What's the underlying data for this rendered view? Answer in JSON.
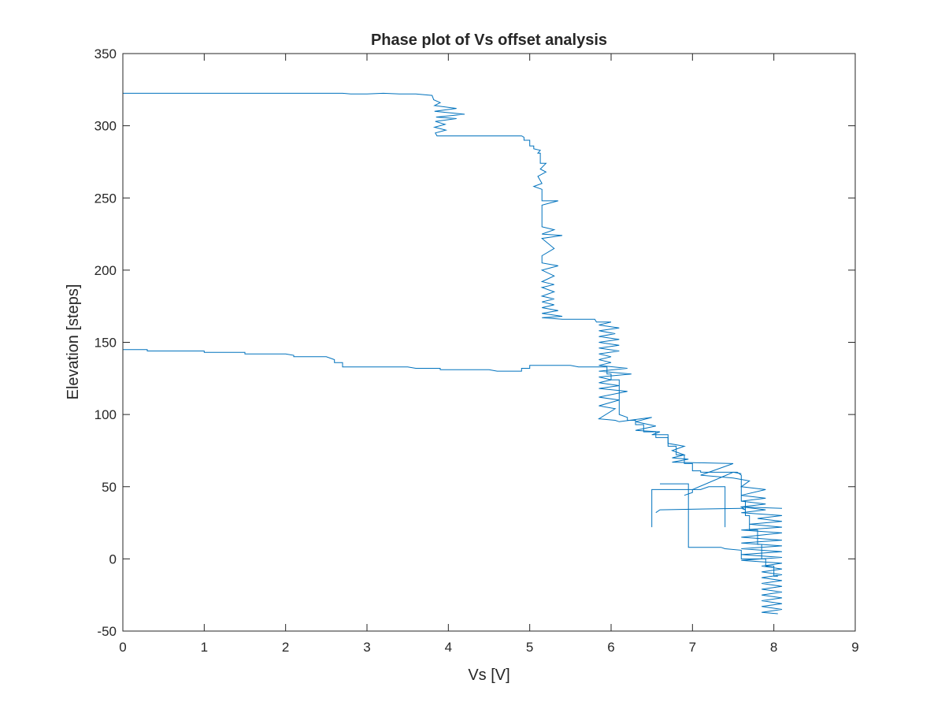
{
  "chart_data": {
    "type": "line",
    "title": "Phase plot of Vs offset analysis",
    "xlabel": "Vs [V]",
    "ylabel": "Elevation [steps]",
    "xlim": [
      0,
      9
    ],
    "ylim": [
      -50,
      350
    ],
    "xticks": [
      0,
      1,
      2,
      3,
      4,
      5,
      6,
      7,
      8,
      9
    ],
    "yticks": [
      -50,
      0,
      50,
      100,
      150,
      200,
      250,
      300,
      350
    ],
    "grid": false,
    "box": true,
    "series": [
      {
        "color": "#0072BD",
        "points": [
          [
            0.0,
            145
          ],
          [
            0.3,
            145
          ],
          [
            0.3,
            144
          ],
          [
            1.0,
            144
          ],
          [
            1.0,
            143
          ],
          [
            1.5,
            143
          ],
          [
            1.5,
            142
          ],
          [
            2.0,
            142
          ],
          [
            2.1,
            141
          ],
          [
            2.1,
            140
          ],
          [
            2.5,
            140
          ],
          [
            2.6,
            138
          ],
          [
            2.6,
            136
          ],
          [
            2.7,
            136
          ],
          [
            2.7,
            133
          ],
          [
            3.5,
            133
          ],
          [
            3.6,
            132
          ],
          [
            3.9,
            132
          ],
          [
            3.9,
            131
          ],
          [
            4.5,
            131
          ],
          [
            4.6,
            130
          ],
          [
            4.9,
            130
          ],
          [
            4.9,
            132
          ],
          [
            5.0,
            132
          ],
          [
            5.0,
            134
          ],
          [
            5.5,
            134
          ],
          [
            5.6,
            133
          ],
          [
            5.95,
            133
          ],
          [
            5.95,
            128
          ],
          [
            6.0,
            128
          ],
          [
            6.0,
            124
          ],
          [
            6.1,
            124
          ],
          [
            6.1,
            100
          ],
          [
            6.2,
            98
          ],
          [
            6.2,
            96
          ],
          [
            6.3,
            96
          ],
          [
            6.3,
            93
          ],
          [
            6.4,
            93
          ],
          [
            6.4,
            88
          ],
          [
            6.55,
            88
          ],
          [
            6.55,
            84
          ],
          [
            6.7,
            84
          ],
          [
            6.7,
            78
          ],
          [
            6.8,
            78
          ],
          [
            6.8,
            72
          ],
          [
            6.9,
            72
          ],
          [
            6.9,
            66
          ],
          [
            7.0,
            66
          ],
          [
            7.0,
            61
          ],
          [
            7.1,
            61
          ],
          [
            7.1,
            60
          ],
          [
            7.55,
            60
          ],
          [
            7.6,
            58
          ],
          [
            7.6,
            40
          ],
          [
            7.65,
            40
          ],
          [
            7.65,
            30
          ],
          [
            7.7,
            30
          ],
          [
            7.7,
            20
          ],
          [
            7.8,
            20
          ],
          [
            7.8,
            10
          ],
          [
            7.85,
            10
          ],
          [
            7.85,
            0
          ],
          [
            7.9,
            0
          ],
          [
            7.9,
            -5
          ],
          [
            8.0,
            -5
          ],
          [
            8.0,
            -12
          ],
          [
            8.05,
            -12
          ]
        ]
      },
      {
        "color": "#0072BD",
        "points": [
          [
            0.0,
            200
          ],
          [
            0.0,
            322.5
          ],
          [
            1.0,
            322.5
          ],
          [
            2.0,
            322.5
          ],
          [
            2.7,
            322.5
          ],
          [
            2.8,
            322
          ],
          [
            3.0,
            322
          ],
          [
            3.2,
            322.5
          ],
          [
            3.4,
            322
          ],
          [
            3.6,
            322
          ],
          [
            3.8,
            321
          ],
          [
            3.82,
            318
          ],
          [
            3.9,
            316
          ],
          [
            3.83,
            314
          ],
          [
            4.1,
            312
          ],
          [
            3.83,
            310
          ],
          [
            4.2,
            308
          ],
          [
            3.85,
            306
          ],
          [
            4.1,
            305
          ],
          [
            3.84,
            303
          ],
          [
            3.96,
            301
          ],
          [
            3.83,
            299
          ],
          [
            3.97,
            297
          ],
          [
            3.84,
            295
          ],
          [
            3.86,
            293
          ],
          [
            4.5,
            293
          ],
          [
            4.9,
            293
          ],
          [
            4.93,
            292
          ],
          [
            4.93,
            290
          ],
          [
            5.0,
            290
          ],
          [
            5.0,
            286
          ],
          [
            5.05,
            286
          ],
          [
            5.05,
            284
          ],
          [
            5.13,
            283
          ],
          [
            5.1,
            281
          ],
          [
            5.13,
            281
          ],
          [
            5.13,
            274
          ],
          [
            5.2,
            274
          ],
          [
            5.13,
            270
          ],
          [
            5.2,
            268
          ],
          [
            5.1,
            265
          ],
          [
            5.15,
            260
          ],
          [
            5.05,
            258
          ],
          [
            5.15,
            256
          ],
          [
            5.15,
            248
          ],
          [
            5.35,
            248
          ],
          [
            5.15,
            245
          ],
          [
            5.15,
            230
          ],
          [
            5.3,
            228
          ],
          [
            5.15,
            225
          ],
          [
            5.4,
            224
          ],
          [
            5.15,
            222
          ],
          [
            5.3,
            215
          ],
          [
            5.15,
            210
          ],
          [
            5.15,
            205
          ],
          [
            5.35,
            203
          ],
          [
            5.15,
            200
          ],
          [
            5.3,
            196
          ],
          [
            5.15,
            192
          ],
          [
            5.3,
            190
          ],
          [
            5.15,
            188
          ],
          [
            5.3,
            185
          ],
          [
            5.15,
            182
          ],
          [
            5.3,
            180
          ],
          [
            5.15,
            178
          ],
          [
            5.3,
            176
          ],
          [
            5.15,
            174
          ],
          [
            5.35,
            172
          ],
          [
            5.15,
            170
          ],
          [
            5.4,
            168
          ],
          [
            5.15,
            167
          ],
          [
            5.4,
            166
          ],
          [
            5.8,
            166
          ],
          [
            5.82,
            164
          ],
          [
            6.0,
            164
          ],
          [
            5.85,
            162
          ],
          [
            6.1,
            160
          ],
          [
            5.85,
            158
          ],
          [
            6.05,
            156
          ],
          [
            5.85,
            154
          ],
          [
            6.1,
            152
          ],
          [
            5.85,
            150
          ],
          [
            6.1,
            148
          ],
          [
            5.85,
            146
          ],
          [
            6.1,
            144
          ],
          [
            5.85,
            142
          ],
          [
            6.0,
            140
          ],
          [
            5.85,
            138
          ],
          [
            6.0,
            136
          ],
          [
            5.85,
            134
          ],
          [
            6.2,
            132
          ],
          [
            5.85,
            130
          ],
          [
            6.25,
            128
          ],
          [
            5.85,
            126
          ],
          [
            6.0,
            124
          ],
          [
            5.85,
            122
          ],
          [
            6.1,
            120
          ],
          [
            5.85,
            118
          ],
          [
            6.2,
            116
          ],
          [
            5.85,
            112
          ],
          [
            6.1,
            110
          ],
          [
            5.85,
            106
          ],
          [
            6.05,
            104
          ],
          [
            5.85,
            97
          ],
          [
            6.05,
            96
          ],
          [
            6.1,
            95
          ],
          [
            6.5,
            98
          ],
          [
            6.3,
            95
          ],
          [
            6.55,
            92
          ],
          [
            6.3,
            89
          ],
          [
            6.6,
            88
          ],
          [
            6.5,
            86
          ],
          [
            6.7,
            86
          ],
          [
            6.7,
            80
          ],
          [
            6.9,
            78
          ],
          [
            6.75,
            75
          ],
          [
            6.9,
            72
          ],
          [
            6.75,
            70
          ],
          [
            6.95,
            69
          ],
          [
            6.75,
            67
          ],
          [
            7.5,
            66
          ],
          [
            7.1,
            58
          ],
          [
            7.5,
            56
          ],
          [
            7.7,
            54
          ],
          [
            7.6,
            50
          ],
          [
            7.9,
            48
          ],
          [
            7.6,
            44
          ],
          [
            7.9,
            42
          ],
          [
            7.6,
            40
          ],
          [
            7.9,
            38
          ],
          [
            7.6,
            36
          ],
          [
            7.9,
            34
          ],
          [
            7.6,
            32
          ],
          [
            8.1,
            30
          ],
          [
            7.8,
            28
          ],
          [
            8.1,
            26
          ],
          [
            7.7,
            24
          ],
          [
            8.1,
            22
          ],
          [
            7.6,
            20
          ],
          [
            8.1,
            18
          ],
          [
            7.6,
            15
          ],
          [
            8.1,
            13
          ],
          [
            7.6,
            11
          ],
          [
            8.1,
            9
          ],
          [
            7.6,
            7
          ],
          [
            8.1,
            5
          ],
          [
            7.6,
            3
          ],
          [
            8.1,
            1
          ],
          [
            7.6,
            -1
          ],
          [
            8.1,
            -3
          ],
          [
            7.85,
            -5
          ],
          [
            8.1,
            -7
          ],
          [
            7.85,
            -9
          ],
          [
            8.1,
            -11
          ],
          [
            7.85,
            -13
          ],
          [
            8.1,
            -15
          ],
          [
            7.85,
            -17
          ],
          [
            8.1,
            -19
          ],
          [
            7.85,
            -21
          ],
          [
            8.1,
            -23
          ],
          [
            7.85,
            -25
          ],
          [
            8.1,
            -27
          ],
          [
            7.85,
            -29
          ],
          [
            8.1,
            -31
          ],
          [
            7.85,
            -33
          ],
          [
            8.1,
            -35
          ],
          [
            7.85,
            -37
          ],
          [
            8.05,
            -38
          ]
        ]
      },
      {
        "color": "#0072BD",
        "points": [
          [
            6.5,
            22
          ],
          [
            6.5,
            48
          ],
          [
            7.1,
            48
          ],
          [
            7.2,
            50
          ],
          [
            7.4,
            50
          ],
          [
            7.4,
            22
          ]
        ]
      },
      {
        "color": "#0072BD",
        "points": [
          [
            6.55,
            32
          ],
          [
            6.6,
            34
          ],
          [
            7.6,
            35
          ],
          [
            7.65,
            34
          ],
          [
            7.6,
            36
          ],
          [
            8.1,
            35
          ]
        ]
      },
      {
        "color": "#0072BD",
        "points": [
          [
            6.6,
            52
          ],
          [
            6.95,
            52
          ],
          [
            6.95,
            8
          ],
          [
            7.35,
            8
          ],
          [
            7.4,
            7
          ],
          [
            7.6,
            6
          ],
          [
            7.6,
            0
          ],
          [
            7.85,
            0
          ]
        ]
      },
      {
        "color": "#0072BD",
        "points": [
          [
            6.9,
            44
          ],
          [
            7.0,
            46
          ],
          [
            7.0,
            48
          ],
          [
            7.5,
            60
          ],
          [
            7.6,
            59
          ]
        ]
      }
    ]
  }
}
